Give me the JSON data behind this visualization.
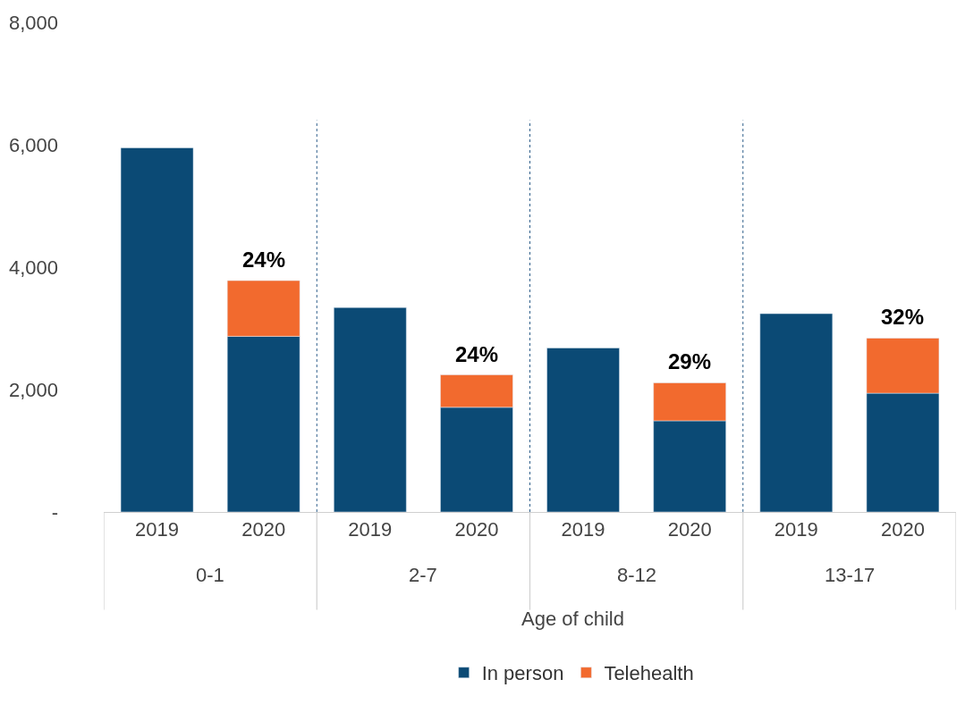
{
  "chart_data": {
    "type": "bar",
    "stacked": true,
    "xlabel": "Age of child",
    "categories": [
      "2019",
      "2020",
      "2019",
      "2020",
      "2019",
      "2020",
      "2019",
      "2020"
    ],
    "annotations": [
      "0-1",
      "2-7",
      "8-12",
      "13-17",
      {
        "text": "24%",
        "y": 3780
      },
      {
        "text": "24%",
        "y": 2240
      },
      {
        "text": "29%",
        "y": 2110
      },
      {
        "text": "32%",
        "y": 2840
      }
    ],
    "series": [
      {
        "name": "In person",
        "color": "#0b4a75",
        "values": [
          5950,
          2870,
          3340,
          1710,
          2680,
          1490,
          3240,
          1940
        ]
      },
      {
        "name": "Telehealth",
        "color": "#f26a2e",
        "values": [
          null,
          910,
          null,
          530,
          null,
          620,
          null,
          900
        ]
      }
    ],
    "ylim": [
      0,
      8000
    ],
    "yticks": [
      {
        "value": 0,
        "label": "-"
      },
      {
        "value": 2000,
        "label": "2,000"
      },
      {
        "value": 4000,
        "label": "4,000"
      },
      {
        "value": 6000,
        "label": "6,000"
      },
      {
        "value": 8000,
        "label": "8,000"
      }
    ],
    "legend": "bottom"
  }
}
